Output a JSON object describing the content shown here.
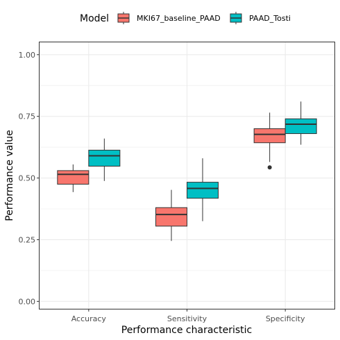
{
  "chart_data": {
    "type": "box",
    "xlabel": "Performance characteristic",
    "ylabel": "Performance value",
    "ylim": [
      -0.03,
      1.05
    ],
    "yticks": [
      0.0,
      0.25,
      0.5,
      0.75,
      1.0
    ],
    "ytick_labels": [
      "0.00",
      "0.25",
      "0.50",
      "0.75",
      "1.00"
    ],
    "grid": true,
    "legend_position": "top",
    "legend_title": "Model",
    "categories": [
      "Accuracy",
      "Sensitivity",
      "Specificity"
    ],
    "series": [
      {
        "name": "MKI67_baseline_PAAD",
        "color": "#F8766D",
        "boxes": [
          {
            "whisker_low": 0.443,
            "q1": 0.475,
            "median": 0.515,
            "q3": 0.53,
            "whisker_high": 0.555,
            "outliers": []
          },
          {
            "whisker_low": 0.245,
            "q1": 0.305,
            "median": 0.352,
            "q3": 0.38,
            "whisker_high": 0.452,
            "outliers": []
          },
          {
            "whisker_low": 0.565,
            "q1": 0.643,
            "median": 0.677,
            "q3": 0.7,
            "whisker_high": 0.765,
            "outliers": [
              0.543
            ]
          }
        ]
      },
      {
        "name": "PAAD_Tosti",
        "color": "#00BFC4",
        "boxes": [
          {
            "whisker_low": 0.488,
            "q1": 0.548,
            "median": 0.59,
            "q3": 0.613,
            "whisker_high": 0.66,
            "outliers": []
          },
          {
            "whisker_low": 0.325,
            "q1": 0.418,
            "median": 0.458,
            "q3": 0.483,
            "whisker_high": 0.58,
            "outliers": []
          },
          {
            "whisker_low": 0.635,
            "q1": 0.68,
            "median": 0.718,
            "q3": 0.74,
            "whisker_high": 0.81,
            "outliers": []
          }
        ]
      }
    ]
  }
}
